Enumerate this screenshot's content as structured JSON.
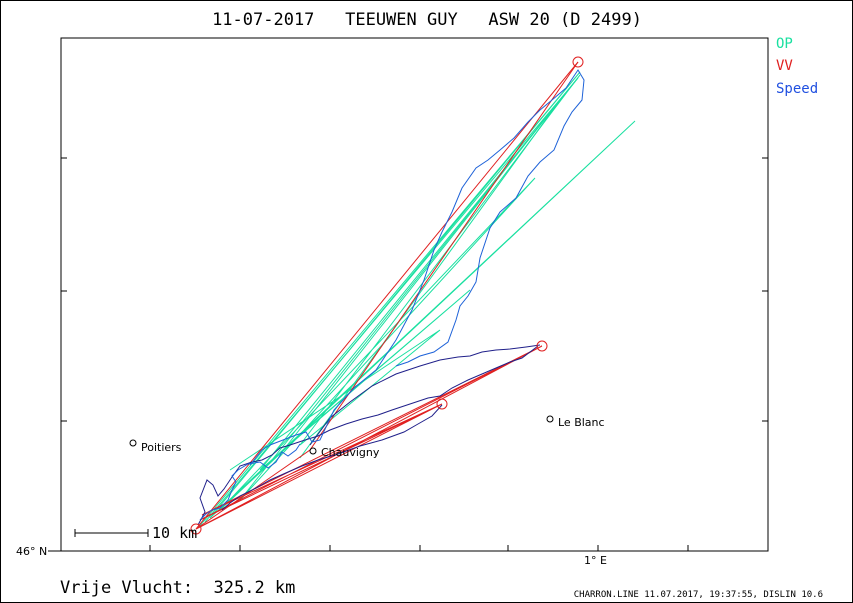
{
  "header": {
    "title": "11-07-2017   TEEUWEN GUY   ASW 20 (D 2499)"
  },
  "legend": [
    {
      "label": "OP",
      "color": "#19e0a0"
    },
    {
      "label": "VV",
      "color": "#e02020"
    },
    {
      "label": "Speed",
      "color": "#2050e0"
    }
  ],
  "map": {
    "places": [
      {
        "name": "Poitiers"
      },
      {
        "name": "Chauvigny"
      },
      {
        "name": "Le Blanc"
      }
    ],
    "scale_bar_label": "10 km",
    "lat_label": "46° N",
    "lon_label": "1° E"
  },
  "footer": {
    "distance_label": "Vrije Vlucht:  325.2 km",
    "credit": "CHARRON.LINE 11.07.2017, 19:37:55, DISLIN 10.6"
  },
  "colors": {
    "op": "#19e0a0",
    "vv": "#e02020",
    "track_dark": "#20208a",
    "track_speed": "#1e62d8",
    "frame": "#000000"
  }
}
